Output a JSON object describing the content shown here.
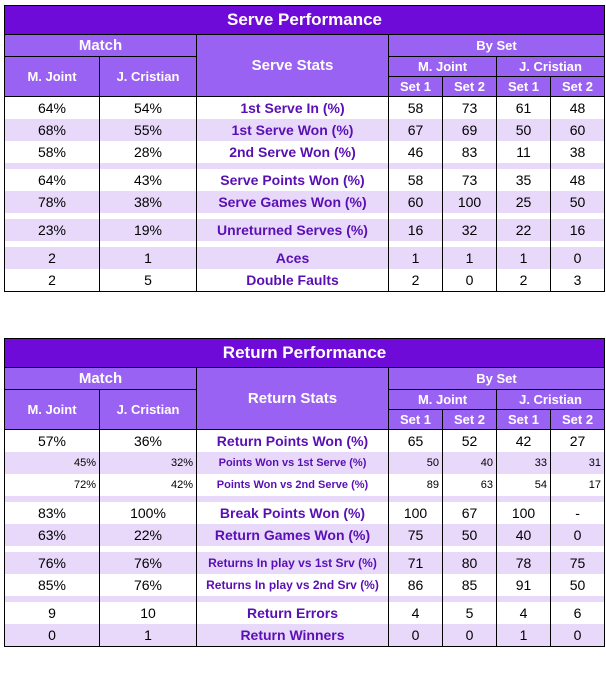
{
  "serve": {
    "title": "Serve Performance",
    "match_label": "Match",
    "stats_label": "Serve Stats",
    "byset_label": "By Set",
    "player1": "M. Joint",
    "player2": "J. Cristian",
    "set1": "Set 1",
    "set2": "Set 2",
    "rows": [
      {
        "label": "1st Serve In (%)",
        "m1": "64%",
        "m2": "54%",
        "s": [
          "58",
          "73",
          "61",
          "48"
        ]
      },
      {
        "label": "1st Serve Won (%)",
        "m1": "68%",
        "m2": "55%",
        "s": [
          "67",
          "69",
          "50",
          "60"
        ]
      },
      {
        "label": "2nd Serve Won (%)",
        "m1": "58%",
        "m2": "28%",
        "s": [
          "46",
          "83",
          "11",
          "38"
        ]
      },
      {
        "label": "Serve Points Won (%)",
        "m1": "64%",
        "m2": "43%",
        "s": [
          "58",
          "73",
          "35",
          "48"
        ]
      },
      {
        "label": "Serve Games Won (%)",
        "m1": "78%",
        "m2": "38%",
        "s": [
          "60",
          "100",
          "25",
          "50"
        ]
      },
      {
        "label": "Unreturned Serves (%)",
        "m1": "23%",
        "m2": "19%",
        "s": [
          "16",
          "32",
          "22",
          "16"
        ]
      },
      {
        "label": "Aces",
        "m1": "2",
        "m2": "1",
        "s": [
          "1",
          "1",
          "1",
          "0"
        ]
      },
      {
        "label": "Double Faults",
        "m1": "2",
        "m2": "5",
        "s": [
          "2",
          "0",
          "2",
          "3"
        ]
      }
    ]
  },
  "return": {
    "title": "Return Performance",
    "match_label": "Match",
    "stats_label": "Return Stats",
    "byset_label": "By Set",
    "player1": "M. Joint",
    "player2": "J. Cristian",
    "set1": "Set 1",
    "set2": "Set 2",
    "rows": [
      {
        "label": "Return Points Won (%)",
        "m1": "57%",
        "m2": "36%",
        "s": [
          "65",
          "52",
          "42",
          "27"
        ]
      },
      {
        "label": "Points Won vs 1st Serve (%)",
        "m1": "45%",
        "m2": "32%",
        "s": [
          "50",
          "40",
          "33",
          "31"
        ]
      },
      {
        "label": "Points Won vs 2nd Serve (%)",
        "m1": "72%",
        "m2": "42%",
        "s": [
          "89",
          "63",
          "54",
          "17"
        ]
      },
      {
        "label": "Break Points Won (%)",
        "m1": "83%",
        "m2": "100%",
        "s": [
          "100",
          "67",
          "100",
          "-"
        ]
      },
      {
        "label": "Return Games Won (%)",
        "m1": "63%",
        "m2": "22%",
        "s": [
          "75",
          "50",
          "40",
          "0"
        ]
      },
      {
        "label": "Returns In play vs 1st Srv (%)",
        "m1": "76%",
        "m2": "76%",
        "s": [
          "71",
          "80",
          "78",
          "75"
        ]
      },
      {
        "label": "Returns In play vs 2nd Srv (%)",
        "m1": "85%",
        "m2": "76%",
        "s": [
          "86",
          "85",
          "91",
          "50"
        ]
      },
      {
        "label": "Return Errors",
        "m1": "9",
        "m2": "10",
        "s": [
          "4",
          "5",
          "4",
          "6"
        ]
      },
      {
        "label": "Return Winners",
        "m1": "0",
        "m2": "1",
        "s": [
          "0",
          "0",
          "1",
          "0"
        ]
      }
    ]
  }
}
